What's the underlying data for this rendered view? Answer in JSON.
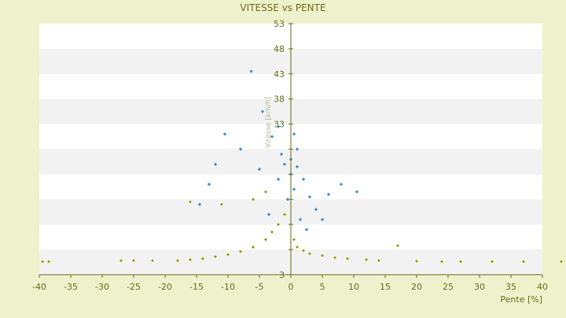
{
  "chart_data": {
    "type": "scatter",
    "title": "VITESSE vs PENTE",
    "xlabel": "Pente [%]",
    "ylabel": "Vitesse [km/h]",
    "xlim": [
      -40,
      40
    ],
    "ylim": [
      3,
      53
    ],
    "x_ticks": [
      -40,
      -35,
      -30,
      -25,
      -20,
      -15,
      -10,
      -5,
      0,
      5,
      10,
      15,
      20,
      25,
      30,
      35,
      40
    ],
    "y_ticks": [
      3,
      8,
      13,
      18,
      23,
      28,
      33,
      38,
      43,
      48,
      53
    ],
    "y_tick_labels_shown": [
      3,
      33,
      38,
      43,
      48,
      53
    ],
    "grid": "horizontal bands",
    "legend": "none",
    "colors": {
      "background": "#eef2cc",
      "plot_band_a": "#ffffff",
      "plot_band_b": "#f2f2f2",
      "axis_text": "#6b6b1a",
      "series_blue": "#3d8fd6",
      "series_olive": "#8a8a10"
    },
    "series": [
      {
        "color": "#3d8fd6",
        "marker": "diamond",
        "points": [
          [
            -6.3,
            43.5
          ],
          [
            -4.5,
            35.5
          ],
          [
            -2.0,
            32.5
          ],
          [
            -10.5,
            31.0
          ],
          [
            -3.0,
            30.5
          ],
          [
            0.5,
            31.0
          ],
          [
            -8.0,
            28.0
          ],
          [
            -12.0,
            25.0
          ],
          [
            -13.0,
            21.0
          ],
          [
            -14.5,
            17.0
          ],
          [
            -1.5,
            27.0
          ],
          [
            0.0,
            26.0
          ],
          [
            1.0,
            24.5
          ],
          [
            2.0,
            22.0
          ],
          [
            -2.0,
            22.0
          ],
          [
            0.5,
            20.0
          ],
          [
            -0.5,
            18.0
          ],
          [
            3.0,
            18.5
          ],
          [
            4.0,
            16.0
          ],
          [
            6.0,
            19.0
          ],
          [
            8.0,
            21.0
          ],
          [
            10.5,
            19.5
          ],
          [
            1.5,
            14.0
          ],
          [
            2.5,
            12.0
          ],
          [
            -3.5,
            15.0
          ],
          [
            0.0,
            23.0
          ],
          [
            -1.0,
            25.0
          ],
          [
            1.0,
            28.0
          ],
          [
            -5.0,
            24.0
          ],
          [
            5.0,
            14.0
          ]
        ]
      },
      {
        "color": "#8a8a10",
        "marker": "diamond",
        "points": [
          [
            -39.5,
            5.6
          ],
          [
            -38.5,
            5.6
          ],
          [
            -27.0,
            5.8
          ],
          [
            -25.0,
            5.8
          ],
          [
            -22.0,
            5.8
          ],
          [
            -18.0,
            5.8
          ],
          [
            -16.0,
            6.0
          ],
          [
            -14.0,
            6.2
          ],
          [
            -12.0,
            6.6
          ],
          [
            -10.0,
            7.0
          ],
          [
            -8.0,
            7.6
          ],
          [
            -6.0,
            8.5
          ],
          [
            -4.0,
            10.0
          ],
          [
            -3.0,
            11.5
          ],
          [
            -2.0,
            13.0
          ],
          [
            -1.0,
            15.0
          ],
          [
            -16.0,
            17.5
          ],
          [
            -11.0,
            17.0
          ],
          [
            -6.0,
            18.0
          ],
          [
            -4.0,
            19.5
          ],
          [
            0.5,
            10.0
          ],
          [
            1.0,
            8.5
          ],
          [
            2.0,
            7.8
          ],
          [
            3.0,
            7.2
          ],
          [
            5.0,
            6.8
          ],
          [
            7.0,
            6.4
          ],
          [
            9.0,
            6.2
          ],
          [
            12.0,
            6.0
          ],
          [
            14.0,
            5.8
          ],
          [
            17.0,
            8.8
          ],
          [
            20.0,
            5.7
          ],
          [
            24.0,
            5.6
          ],
          [
            27.0,
            5.6
          ],
          [
            32.0,
            5.6
          ],
          [
            37.0,
            5.6
          ],
          [
            43.0,
            5.6
          ]
        ]
      }
    ]
  }
}
